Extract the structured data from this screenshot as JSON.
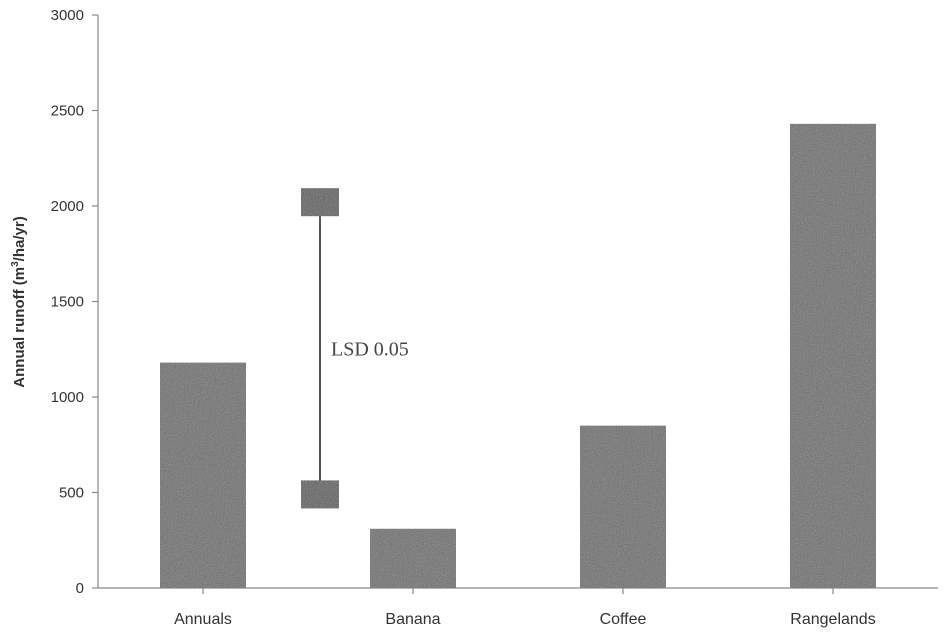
{
  "chart_data": {
    "type": "bar",
    "categories": [
      "Annuals",
      "Banana",
      "Coffee",
      "Rangelands"
    ],
    "values": [
      1180,
      310,
      850,
      2430
    ],
    "ylabel_prefix": "Annual runoff (m",
    "ylabel_sup": "3",
    "ylabel_suffix": "/ha/yr)",
    "ylim": [
      0,
      3000
    ],
    "yticks": [
      0,
      500,
      1000,
      1500,
      2000,
      2500,
      3000
    ],
    "grid": false,
    "bar_color": "#6e6e6e",
    "lsd": {
      "label": "LSD 0.05",
      "low": 490,
      "high": 2020
    }
  }
}
